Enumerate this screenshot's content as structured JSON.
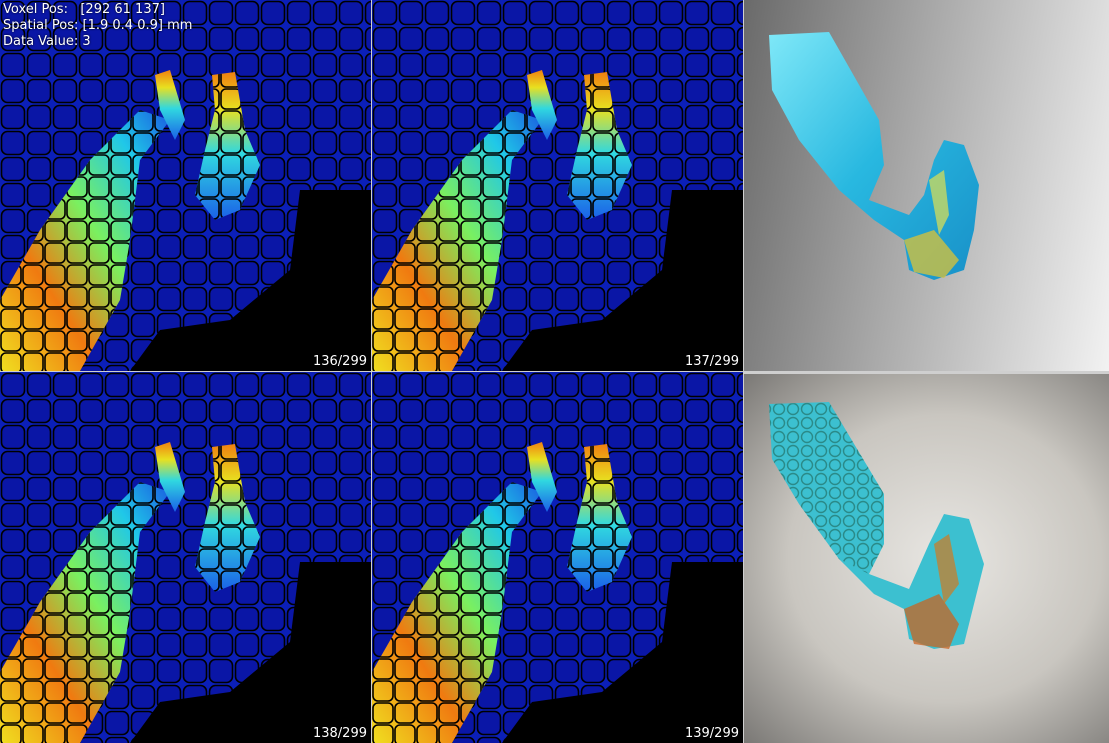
{
  "overlay": {
    "voxel_pos": "Voxel Pos:   [292 61 137]",
    "spatial_pos": "Spatial Pos: [1.9 0.4 0.9] mm",
    "data_value": "Data Value: 3"
  },
  "slices": [
    {
      "label": "136/299"
    },
    {
      "label": "137/299"
    },
    {
      "label": "138/299"
    },
    {
      "label": "139/299"
    }
  ],
  "colors": {
    "background": "#0a14b4",
    "cell_border": "#000000",
    "empty_region": "#000000"
  }
}
